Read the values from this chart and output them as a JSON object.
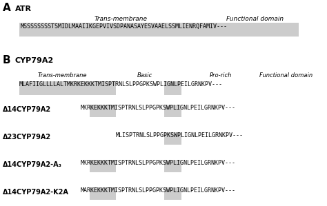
{
  "title_A": "A",
  "label_ATR": "ATR",
  "seq_ATR": "MSSSSSSSSTSMIDLMAAIIKGEPVIVSDPANASAYESVAAELSSMLIENRQFAMIV---",
  "seq_CYP": "MLAFIIGLLLLALTMKRKEKKKTMISPTRNLSLPPGPKSWPLIGNLPEILGRNKPV---",
  "variants": [
    {
      "label": "Δ14CYP79A2",
      "seq": "MKRKEKKKTMISPTRNLSLPPGPKSWPLIGNLPEILGRNKPV---",
      "has_basic": true
    },
    {
      "label": "Δ23CYP79A2",
      "seq": "MLISPTRNLSLPPGPKSWPLIGNLPEILGRNKPV---",
      "has_basic": false
    },
    {
      "label": "Δ14CYP79A2-A₃",
      "seq": "MKRKEKKKTMISPTRNLSLPPGPKSWPLIGNLPEILGRNKPV---",
      "has_basic": true
    },
    {
      "label": "Δ14CYP79A2-K2A",
      "seq": "MARKEKKKTMISPTRNLSLPPGPKSWPLIGNLPEILGRNKPV---",
      "has_basic": true
    }
  ],
  "box_color": "#cccccc",
  "bg_color": "#ffffff",
  "text_color": "#000000"
}
